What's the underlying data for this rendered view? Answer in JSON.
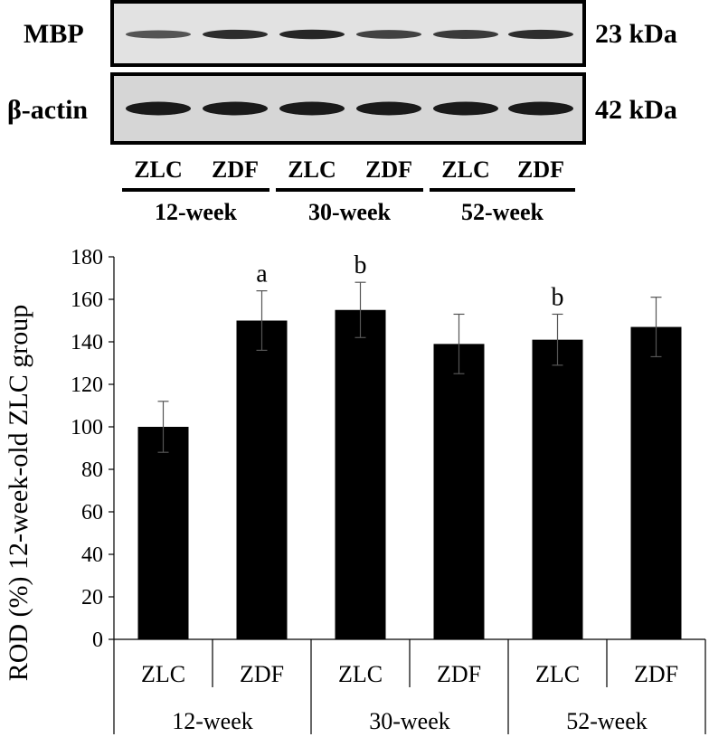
{
  "blot": {
    "rows": [
      {
        "protein": "MBP",
        "size": "23 kDa",
        "band_intensity": [
          0.55,
          0.85,
          0.9,
          0.7,
          0.75,
          0.85
        ]
      },
      {
        "protein": "β-actin",
        "size": "42 kDa",
        "band_intensity": [
          1.0,
          1.0,
          1.0,
          1.0,
          1.0,
          1.0
        ]
      }
    ],
    "lanes": [
      "ZLC",
      "ZDF",
      "ZLC",
      "ZDF",
      "ZLC",
      "ZDF"
    ],
    "groups": [
      "12-week",
      "30-week",
      "52-week"
    ],
    "colors": {
      "band": "#1a1a1a",
      "membrane": "#d9d9d9"
    }
  },
  "chart_data": {
    "type": "bar",
    "categories": [
      "ZLC",
      "ZDF",
      "ZLC",
      "ZDF",
      "ZLC",
      "ZDF"
    ],
    "groups": [
      "12-week",
      "30-week",
      "52-week"
    ],
    "values": [
      100,
      150,
      155,
      139,
      141,
      147
    ],
    "errors": [
      12,
      14,
      13,
      14,
      12,
      14
    ],
    "annotations": [
      "",
      "a",
      "b",
      "",
      "b",
      ""
    ],
    "ylabel": "ROD (%) 12-week-old ZLC group",
    "ylim": [
      0,
      180
    ],
    "yticks": [
      0,
      20,
      40,
      60,
      80,
      100,
      120,
      140,
      160,
      180
    ],
    "grid": false,
    "colors": {
      "bar": "#000000"
    }
  }
}
